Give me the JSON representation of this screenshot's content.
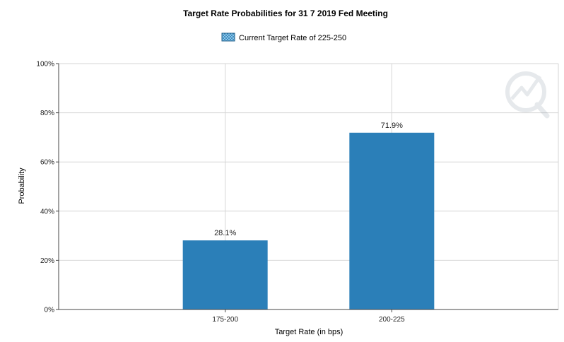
{
  "chart_data": {
    "type": "bar",
    "title": "Target Rate Probabilities for 31 7 2019 Fed Meeting",
    "legend": {
      "label": "Current Target Rate of 225-250",
      "placement": "top-center"
    },
    "categories": [
      "175-200",
      "200-225"
    ],
    "values": [
      28.1,
      71.9
    ],
    "value_labels": [
      "28.1%",
      "71.9%"
    ],
    "xlabel": "Target Rate (in bps)",
    "ylabel": "Probability",
    "ylim": [
      0,
      100
    ],
    "yticks": [
      "0%",
      "20%",
      "40%",
      "60%",
      "80%",
      "100%"
    ],
    "grid": true,
    "bar_color": "#2b7fb8",
    "grid_color": "#d6d6d6"
  }
}
